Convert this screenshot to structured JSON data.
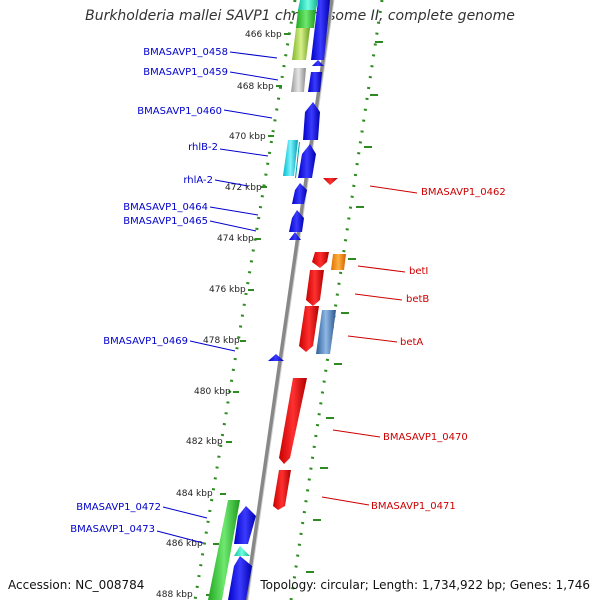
{
  "title": "Burkholderia mallei SAVP1 chromosome II, complete genome",
  "footer": {
    "accession": "Accession: NC_008784",
    "summary": "Topology: circular; Length: 1,734,922 bp; Genes: 1,746"
  },
  "colors": {
    "backbone": "#888888",
    "scale_dots": "#2e8b22",
    "forward_label": "#0000cc",
    "reverse_label": "#cc0000",
    "tick_text": "#222222"
  },
  "scale_ticks": [
    "466 kbp",
    "468 kbp",
    "470 kbp",
    "472 kbp",
    "474 kbp",
    "476 kbp",
    "478 kbp",
    "480 kbp",
    "482 kbp",
    "484 kbp",
    "486 kbp",
    "488 kbp"
  ],
  "genes_left": [
    "BMASAVP1_0458",
    "BMASAVP1_0459",
    "BMASAVP1_0460",
    "rhlB-2",
    "rhlA-2",
    "BMASAVP1_0464",
    "BMASAVP1_0465",
    "BMASAVP1_0469",
    "BMASAVP1_0472",
    "BMASAVP1_0473"
  ],
  "genes_right": [
    "BMASAVP1_0462",
    "betI",
    "betB",
    "betA",
    "BMASAVP1_0470",
    "BMASAVP1_0471"
  ]
}
